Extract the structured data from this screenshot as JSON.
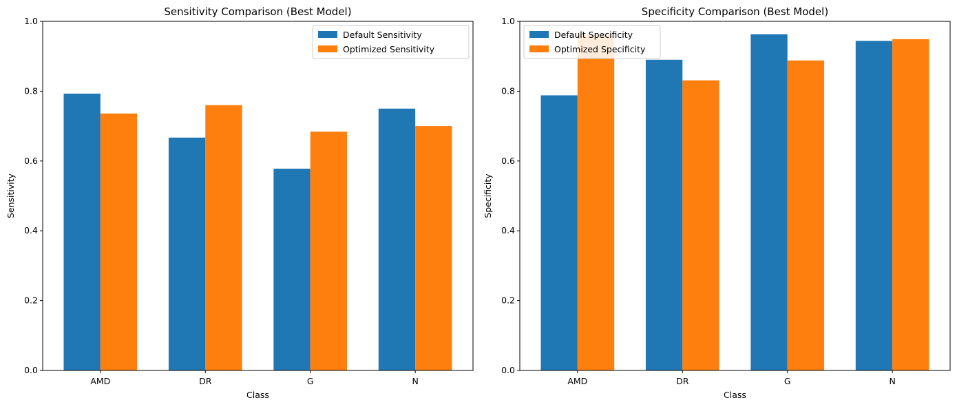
{
  "chart_data": [
    {
      "type": "bar",
      "title": "Sensitivity Comparison (Best Model)",
      "xlabel": "Class",
      "ylabel": "Sensitivity",
      "categories": [
        "AMD",
        "DR",
        "G",
        "N"
      ],
      "ylim": [
        0,
        1.0
      ],
      "yticks": [
        "0.0",
        "0.2",
        "0.4",
        "0.6",
        "0.8",
        "1.0"
      ],
      "grid": false,
      "legend_position": "top-right",
      "series": [
        {
          "name": "Default Sensitivity",
          "color": "#1f77b4",
          "values": [
            0.793,
            0.667,
            0.578,
            0.75
          ]
        },
        {
          "name": "Optimized Sensitivity",
          "color": "#ff7f0e",
          "values": [
            0.736,
            0.76,
            0.684,
            0.7
          ]
        }
      ]
    },
    {
      "type": "bar",
      "title": "Specificity Comparison (Best Model)",
      "xlabel": "Class",
      "ylabel": "Specificity",
      "categories": [
        "AMD",
        "DR",
        "G",
        "N"
      ],
      "ylim": [
        0,
        1.0
      ],
      "yticks": [
        "0.0",
        "0.2",
        "0.4",
        "0.6",
        "0.8",
        "1.0"
      ],
      "grid": false,
      "legend_position": "top-left",
      "series": [
        {
          "name": "Default Specificity",
          "color": "#1f77b4",
          "values": [
            0.788,
            0.89,
            0.963,
            0.944
          ]
        },
        {
          "name": "Optimized Specificity",
          "color": "#ff7f0e",
          "values": [
            0.962,
            0.831,
            0.888,
            0.949
          ]
        }
      ]
    }
  ]
}
